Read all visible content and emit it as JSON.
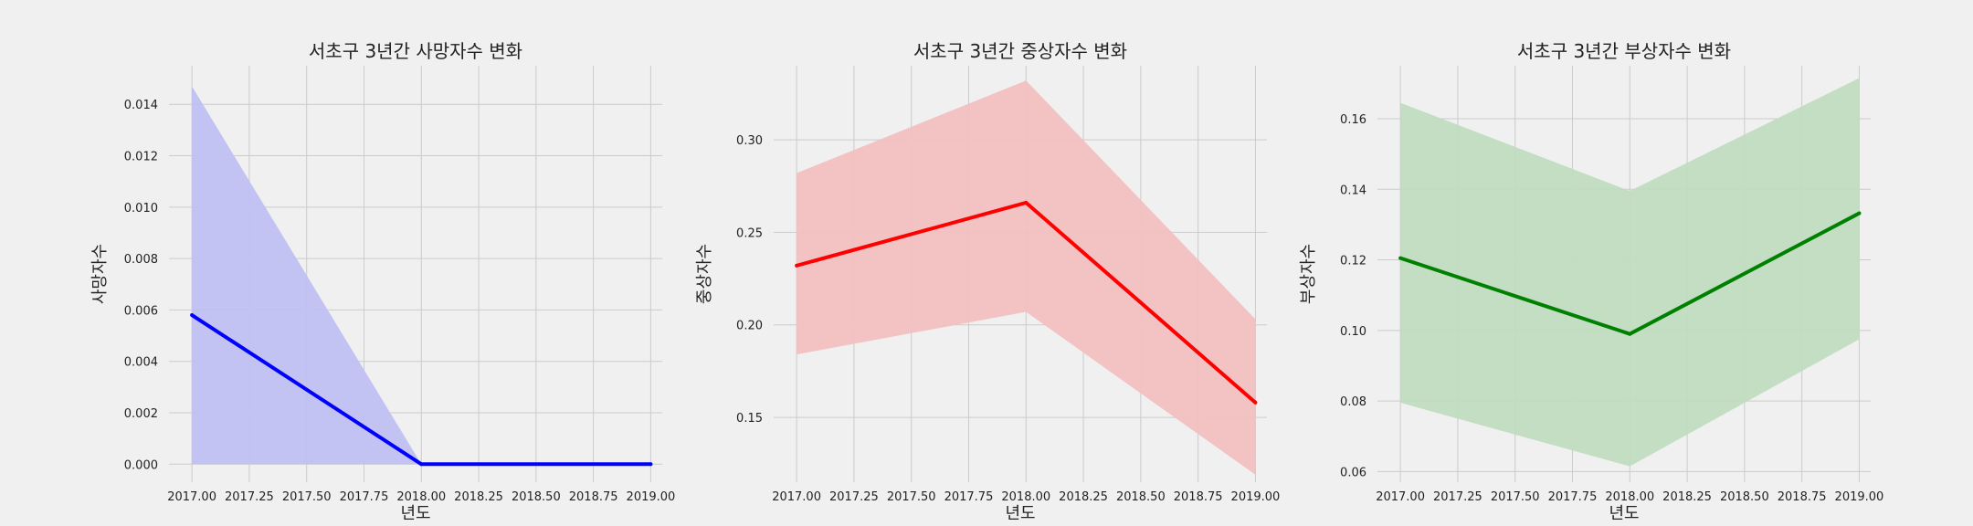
{
  "chart_data": [
    {
      "type": "line",
      "title": "서초구 3년간 사망자수 변화",
      "xlabel": "년도",
      "ylabel": "사망자수",
      "color": "#0000ff",
      "band_color": "#c0c0f2",
      "x": [
        2017.0,
        2018.0,
        2019.0
      ],
      "y": [
        0.0058,
        0.0,
        0.0
      ],
      "ci_lower": [
        0.0,
        0.0,
        0.0
      ],
      "ci_upper": [
        0.0147,
        0.0,
        0.0
      ],
      "xlim": [
        2016.9,
        2019.05
      ],
      "ylim": [
        -0.0007,
        0.0155
      ],
      "xticks": [
        2017.0,
        2017.25,
        2017.5,
        2017.75,
        2018.0,
        2018.25,
        2018.5,
        2018.75,
        2019.0
      ],
      "xtick_labels": [
        "2017.00",
        "2017.25",
        "2017.50",
        "2017.75",
        "2018.00",
        "2018.25",
        "2018.50",
        "2018.75",
        "2019.00"
      ],
      "yticks": [
        0.0,
        0.002,
        0.004,
        0.006,
        0.008,
        0.01,
        0.012,
        0.014
      ],
      "ytick_labels": [
        "0.000",
        "0.002",
        "0.004",
        "0.006",
        "0.008",
        "0.010",
        "0.012",
        "0.014"
      ],
      "grid": true
    },
    {
      "type": "line",
      "title": "서초구 3년간 중상자수 변화",
      "xlabel": "년도",
      "ylabel": "중상자수",
      "color": "#ff0000",
      "band_color": "#f2c0c0",
      "x": [
        2017.0,
        2018.0,
        2019.0
      ],
      "y": [
        0.232,
        0.266,
        0.158
      ],
      "ci_lower": [
        0.184,
        0.207,
        0.119
      ],
      "ci_upper": [
        0.282,
        0.332,
        0.203
      ],
      "xlim": [
        2016.9,
        2019.05
      ],
      "ylim": [
        0.115,
        0.34
      ],
      "xticks": [
        2017.0,
        2017.25,
        2017.5,
        2017.75,
        2018.0,
        2018.25,
        2018.5,
        2018.75,
        2019.0
      ],
      "xtick_labels": [
        "2017.00",
        "2017.25",
        "2017.50",
        "2017.75",
        "2018.00",
        "2018.25",
        "2018.50",
        "2018.75",
        "2019.00"
      ],
      "yticks": [
        0.15,
        0.2,
        0.25,
        0.3
      ],
      "ytick_labels": [
        "0.15",
        "0.20",
        "0.25",
        "0.30"
      ],
      "grid": true
    },
    {
      "type": "line",
      "title": "서초구 3년간 부상자수 변화",
      "xlabel": "년도",
      "ylabel": "부상자수",
      "color": "#008000",
      "band_color": "#c0dcc0",
      "x": [
        2017.0,
        2018.0,
        2019.0
      ],
      "y": [
        0.1205,
        0.099,
        0.1332
      ],
      "ci_lower": [
        0.0795,
        0.0615,
        0.0975
      ],
      "ci_upper": [
        0.1645,
        0.1395,
        0.1715
      ],
      "xlim": [
        2016.9,
        2019.05
      ],
      "ylim": [
        0.057,
        0.175
      ],
      "xticks": [
        2017.0,
        2017.25,
        2017.5,
        2017.75,
        2018.0,
        2018.25,
        2018.5,
        2018.75,
        2019.0
      ],
      "xtick_labels": [
        "2017.00",
        "2017.25",
        "2017.50",
        "2017.75",
        "2018.00",
        "2018.25",
        "2018.50",
        "2018.75",
        "2019.00"
      ],
      "yticks": [
        0.06,
        0.08,
        0.1,
        0.12,
        0.14,
        0.16
      ],
      "ytick_labels": [
        "0.06",
        "0.08",
        "0.10",
        "0.12",
        "0.14",
        "0.16"
      ],
      "grid": true
    }
  ]
}
